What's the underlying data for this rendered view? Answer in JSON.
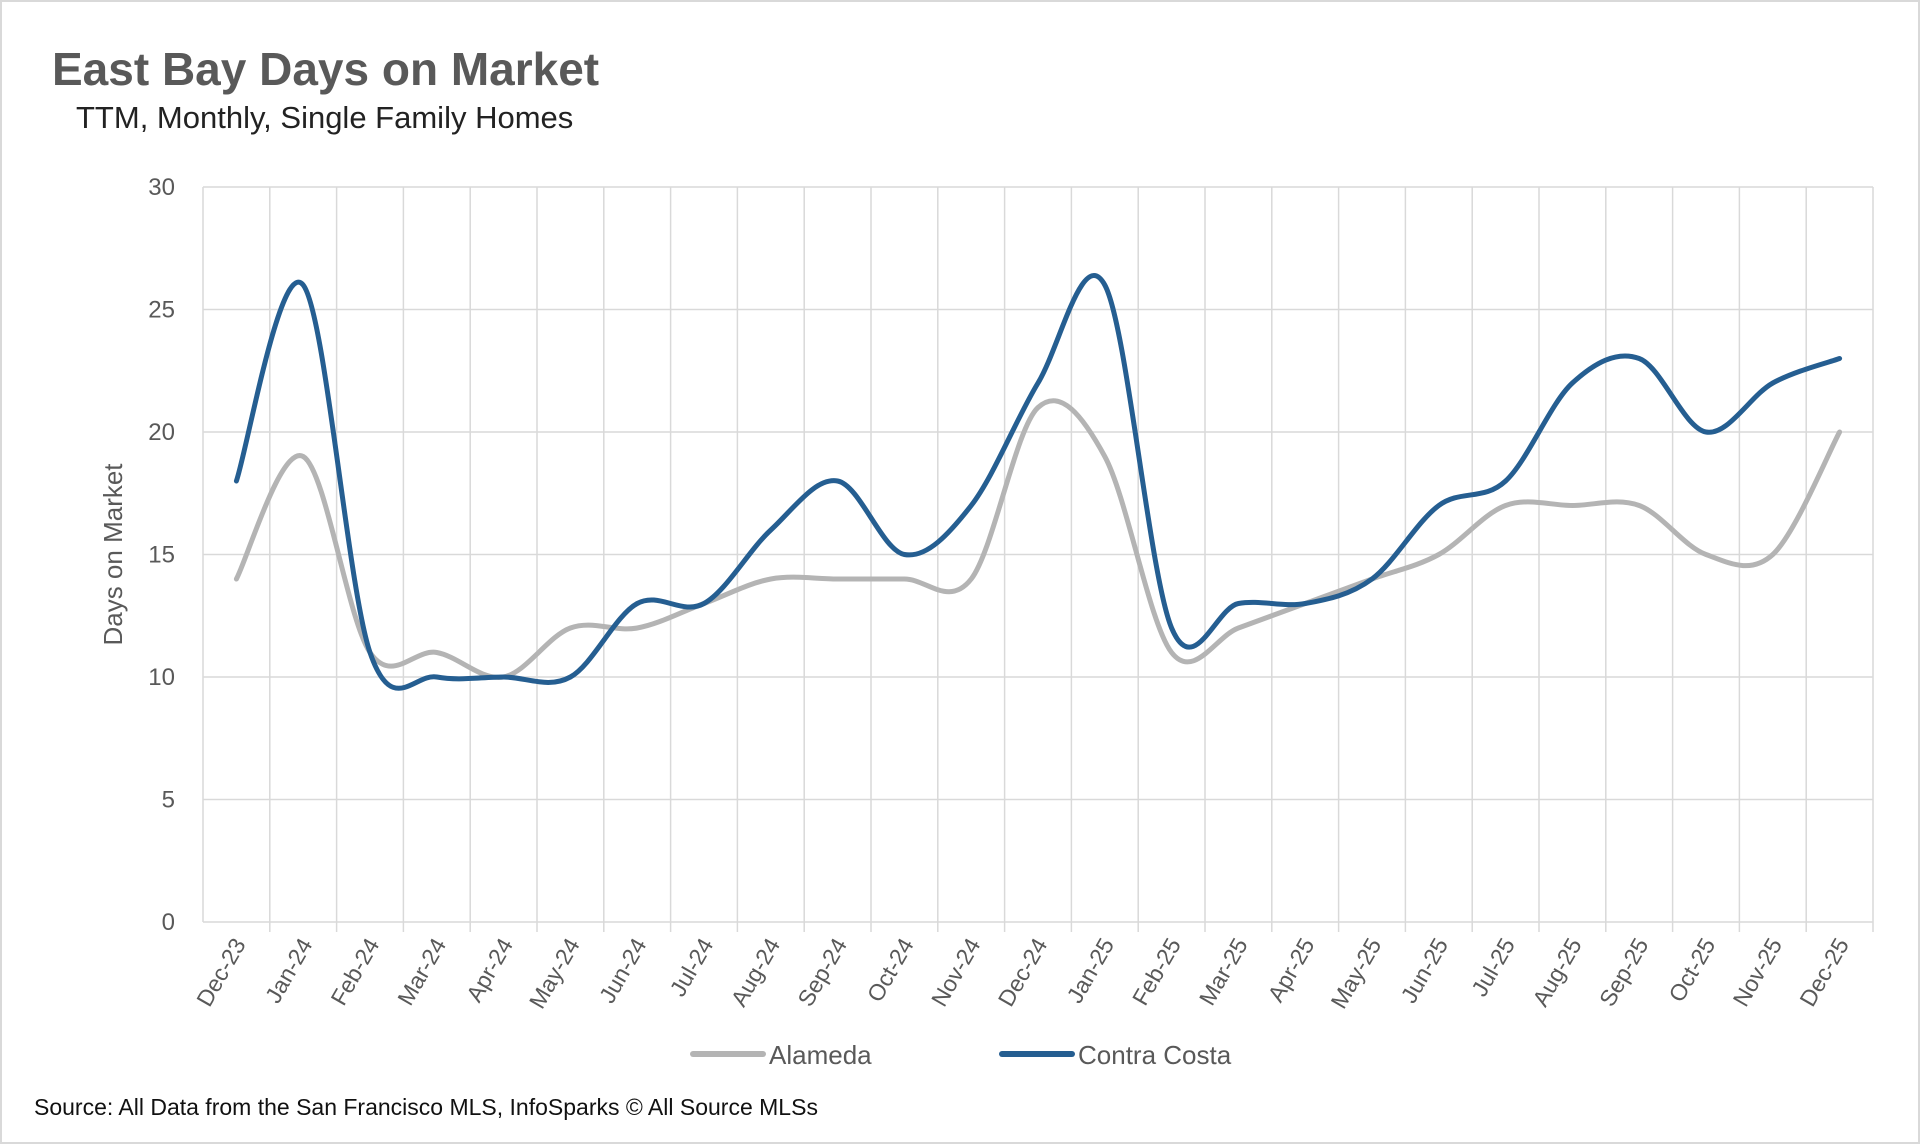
{
  "chart_data": {
    "type": "line",
    "title": "East Bay Days on Market",
    "subtitle": "TTM, Monthly, Single Family Homes",
    "ylabel": "Days on Market",
    "xlabel": "",
    "ylim": [
      0,
      30
    ],
    "yticks": [
      0,
      5,
      10,
      15,
      20,
      25,
      30
    ],
    "grid": true,
    "legend": "bottom",
    "smoothed": true,
    "categories": [
      "Dec-23",
      "Jan-24",
      "Feb-24",
      "Mar-24",
      "Apr-24",
      "May-24",
      "Jun-24",
      "Jul-24",
      "Aug-24",
      "Sep-24",
      "Oct-24",
      "Nov-24",
      "Dec-24",
      "Jan-25",
      "Feb-25",
      "Mar-25",
      "Apr-25",
      "May-25",
      "Jun-25",
      "Jul-25",
      "Aug-25",
      "Sep-25",
      "Oct-25",
      "Nov-25",
      "Dec-25"
    ],
    "series": [
      {
        "name": "Alameda",
        "color": "#B4B4B4",
        "values": [
          14,
          19,
          11,
          11,
          10,
          12,
          12,
          13,
          14,
          14,
          14,
          14,
          21,
          19,
          11,
          12,
          13,
          14,
          15,
          17,
          17,
          17,
          15,
          15,
          20
        ]
      },
      {
        "name": "Contra Costa",
        "color": "#255E91",
        "values": [
          18,
          26,
          11,
          10,
          10,
          10,
          13,
          13,
          16,
          18,
          15,
          17,
          22,
          26,
          12,
          13,
          13,
          14,
          17,
          18,
          22,
          23,
          20,
          22,
          23
        ]
      }
    ],
    "source": "Source: All Data from the San Francisco MLS, InfoSparks © All Source MLSs"
  }
}
